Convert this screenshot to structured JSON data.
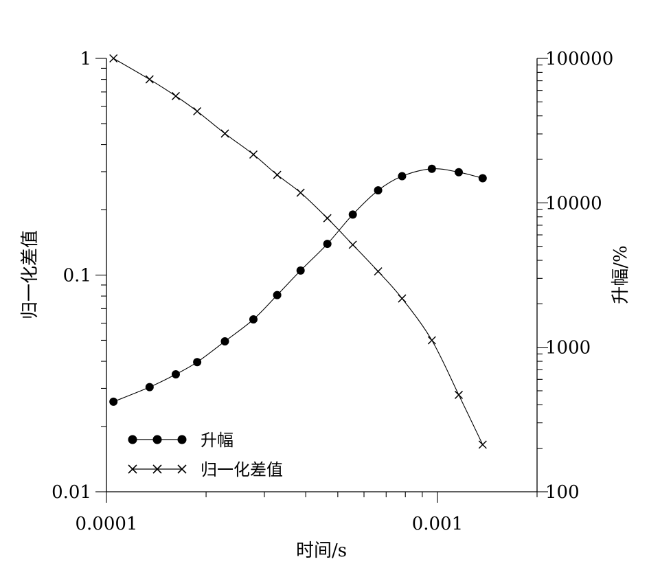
{
  "chart_data": {
    "type": "line",
    "xlabel": "时间/s",
    "ylabel_left": "归一化差值",
    "ylabel_right": "升幅/%",
    "x_scale": "log",
    "xlim": [
      0.0001,
      0.002
    ],
    "x_ticks": [
      0.0001,
      0.001
    ],
    "x_tick_labels": [
      "0.0001",
      "0.001"
    ],
    "y_left_scale": "log",
    "y_left_lim": [
      0.01,
      1
    ],
    "y_left_ticks": [
      0.01,
      0.1,
      1
    ],
    "y_left_tick_labels": [
      "0.01",
      "0.1",
      "1"
    ],
    "y_right_scale": "log",
    "y_right_lim": [
      100,
      100000
    ],
    "y_right_ticks": [
      100,
      1000,
      10000,
      100000
    ],
    "y_right_tick_labels": [
      "100",
      "1000",
      "10000",
      "100000"
    ],
    "grid": false,
    "legend_position": "bottom-left",
    "series": [
      {
        "name": "升幅",
        "axis": "right",
        "marker": "filled-circle",
        "x": [
          0.000105,
          0.000135,
          0.000162,
          0.000188,
          0.000228,
          0.000278,
          0.000328,
          0.000386,
          0.000465,
          0.000555,
          0.000662,
          0.000782,
          0.000962,
          0.00116,
          0.00137
        ],
        "y": [
          420,
          530,
          650,
          790,
          1100,
          1560,
          2300,
          3400,
          5200,
          8300,
          12200,
          15300,
          17200,
          16300,
          14800
        ]
      },
      {
        "name": "归一化差值",
        "axis": "left",
        "marker": "cross",
        "x": [
          0.000105,
          0.000135,
          0.000162,
          0.000188,
          0.000228,
          0.000278,
          0.000328,
          0.000386,
          0.000465,
          0.000555,
          0.000662,
          0.000782,
          0.000962,
          0.00116,
          0.00137
        ],
        "y": [
          1.0,
          0.8,
          0.67,
          0.57,
          0.45,
          0.36,
          0.29,
          0.24,
          0.183,
          0.138,
          0.104,
          0.078,
          0.05,
          0.028,
          0.0165
        ]
      }
    ]
  }
}
